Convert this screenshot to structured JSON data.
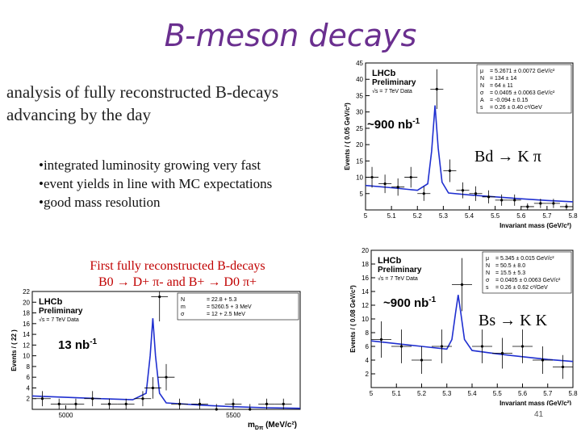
{
  "slide": {
    "title": "B-meson decays",
    "intro_lines": [
      "analysis of fully reconstructed B-decays",
      "advancing by the day"
    ],
    "bullets": [
      "•integrated luminosity growing very fast",
      "•event yields in line with MC expectations",
      "•good mass resolution"
    ],
    "caption_line1": "First fully reconstructed B-decays",
    "caption_line2": "B0 → D+ π- and B+ → D0 π+",
    "page_number": "41"
  },
  "colors": {
    "title": "#6a2f8f",
    "caption": "#c00000",
    "fit": "#1f2fd0",
    "points": "#000000"
  },
  "chart_data": [
    {
      "type": "scatter",
      "id": "bd-kpi",
      "header": "LHCb",
      "header2": "Preliminary",
      "energy_label": "√s = 7 TeV Data",
      "luminosity": "~900 nb",
      "luminosity_exp": "-1",
      "decay_label": "Bd → K π",
      "ylabel": "Events / ( 0.05 GeV/c²)",
      "xlabel": "Invariant mass (GeV/c²)",
      "xlim": [
        5.0,
        5.8
      ],
      "ylim": [
        0,
        45
      ],
      "xticks": [
        "5",
        "5.1",
        "5.2",
        "5.3",
        "5.4",
        "5.5",
        "5.6",
        "5.7",
        "5.8"
      ],
      "yticks": [
        "5",
        "10",
        "15",
        "20",
        "25",
        "30",
        "35",
        "40",
        "45"
      ],
      "x": [
        5.025,
        5.075,
        5.125,
        5.175,
        5.225,
        5.275,
        5.325,
        5.375,
        5.425,
        5.475,
        5.525,
        5.575,
        5.625,
        5.675,
        5.725,
        5.775
      ],
      "y": [
        10,
        8,
        7,
        10,
        5,
        37,
        12,
        6,
        5,
        4,
        3,
        3,
        1,
        2,
        2,
        1
      ],
      "fit_x": [
        5.0,
        5.1,
        5.2,
        5.24,
        5.255,
        5.268,
        5.28,
        5.295,
        5.32,
        5.4,
        5.5,
        5.6,
        5.7,
        5.8
      ],
      "fit_y": [
        7.5,
        6.8,
        6.0,
        8.0,
        18.0,
        32.0,
        19.0,
        8.5,
        5.2,
        4.6,
        4.0,
        3.4,
        2.9,
        2.5
      ],
      "params": [
        [
          "μ",
          "= 5.2671 ± 0.0072 GeV/c²"
        ],
        [
          "N",
          "= 134 ± 14"
        ],
        [
          "N",
          "= 64 ± 11"
        ],
        [
          "σ",
          "= 0.0405 ± 0.0063 GeV/c²"
        ],
        [
          "A",
          "= -0.094 ± 0.15"
        ],
        [
          "s",
          "= 0.26 ± 0.40 c²/GeV"
        ]
      ]
    },
    {
      "type": "scatter",
      "id": "bs-kk",
      "header": "LHCb",
      "header2": "Preliminary",
      "energy_label": "√s = 7 TeV Data",
      "luminosity": "~900 nb",
      "luminosity_exp": "-1",
      "decay_label": "Bs → K K",
      "ylabel": "Events / ( 0.08 GeV/c²)",
      "xlabel": "Invariant mass (GeV/c²)",
      "xlim": [
        5.0,
        5.8
      ],
      "ylim": [
        0,
        20
      ],
      "xticks": [
        "5",
        "5.1",
        "5.2",
        "5.3",
        "5.4",
        "5.5",
        "5.6",
        "5.7",
        "5.8"
      ],
      "yticks": [
        "2",
        "4",
        "6",
        "8",
        "10",
        "12",
        "14",
        "16",
        "18",
        "20"
      ],
      "x": [
        5.04,
        5.12,
        5.2,
        5.28,
        5.36,
        5.44,
        5.52,
        5.6,
        5.68,
        5.76
      ],
      "y": [
        7,
        6,
        4,
        6,
        15,
        6,
        5,
        6,
        4,
        3
      ],
      "fit_x": [
        5.0,
        5.2,
        5.3,
        5.32,
        5.335,
        5.345,
        5.355,
        5.37,
        5.4,
        5.5,
        5.6,
        5.7,
        5.8
      ],
      "fit_y": [
        6.8,
        6.0,
        5.6,
        7.0,
        11.0,
        13.5,
        11.0,
        7.0,
        5.4,
        4.9,
        4.5,
        4.1,
        3.8
      ],
      "params": [
        [
          "μ",
          "= 5.345 ± 0.015 GeV/c²"
        ],
        [
          "N",
          "= 50.5 ± 8.0"
        ],
        [
          "N",
          "= 15.5 ± 5.3"
        ],
        [
          "σ",
          "= 0.0405 ± 0.0063 GeV/c²"
        ],
        [
          "s",
          "= 0.26 ± 0.62 c²/GeV"
        ]
      ]
    },
    {
      "type": "scatter",
      "id": "d-pi",
      "header": "LHCb",
      "header2": "Preliminary",
      "energy_label": "√s = 7 TeV Data",
      "luminosity": "13 nb",
      "luminosity_exp": "-1",
      "ylabel": "Events / ( 22 )",
      "xlabel": "m",
      "xlabel_sub": "Dπ",
      "xlabel_unit": "(MeV/c²)",
      "xlim": [
        4900,
        5700
      ],
      "ylim": [
        0,
        22
      ],
      "xticks": [
        "5000",
        "5500"
      ],
      "xtick_values": [
        5000,
        5500
      ],
      "yticks": [
        "2",
        "4",
        "6",
        "8",
        "10",
        "12",
        "14",
        "16",
        "18",
        "20",
        "22"
      ],
      "x": [
        4930,
        4980,
        5030,
        5080,
        5130,
        5180,
        5230,
        5260,
        5280,
        5300,
        5340,
        5400,
        5450,
        5500,
        5550,
        5600,
        5650
      ],
      "y": [
        2,
        1,
        1,
        2,
        1,
        1,
        2,
        4,
        21,
        6,
        1,
        1,
        0,
        1,
        0,
        1,
        1
      ],
      "fit_x": [
        4900,
        5100,
        5200,
        5240,
        5252,
        5260,
        5268,
        5280,
        5300,
        5400,
        5500,
        5600,
        5700
      ],
      "fit_y": [
        2.5,
        2.0,
        1.8,
        3.0,
        10.0,
        17.0,
        10.0,
        3.0,
        1.2,
        0.8,
        0.5,
        0.3,
        0.2
      ],
      "params": [
        [
          "N",
          "= 22.8 + 5.3"
        ],
        [
          "m",
          "= 5260.5 + 3 MeV"
        ],
        [
          "σ",
          "= 12 + 2.5 MeV"
        ]
      ]
    }
  ]
}
